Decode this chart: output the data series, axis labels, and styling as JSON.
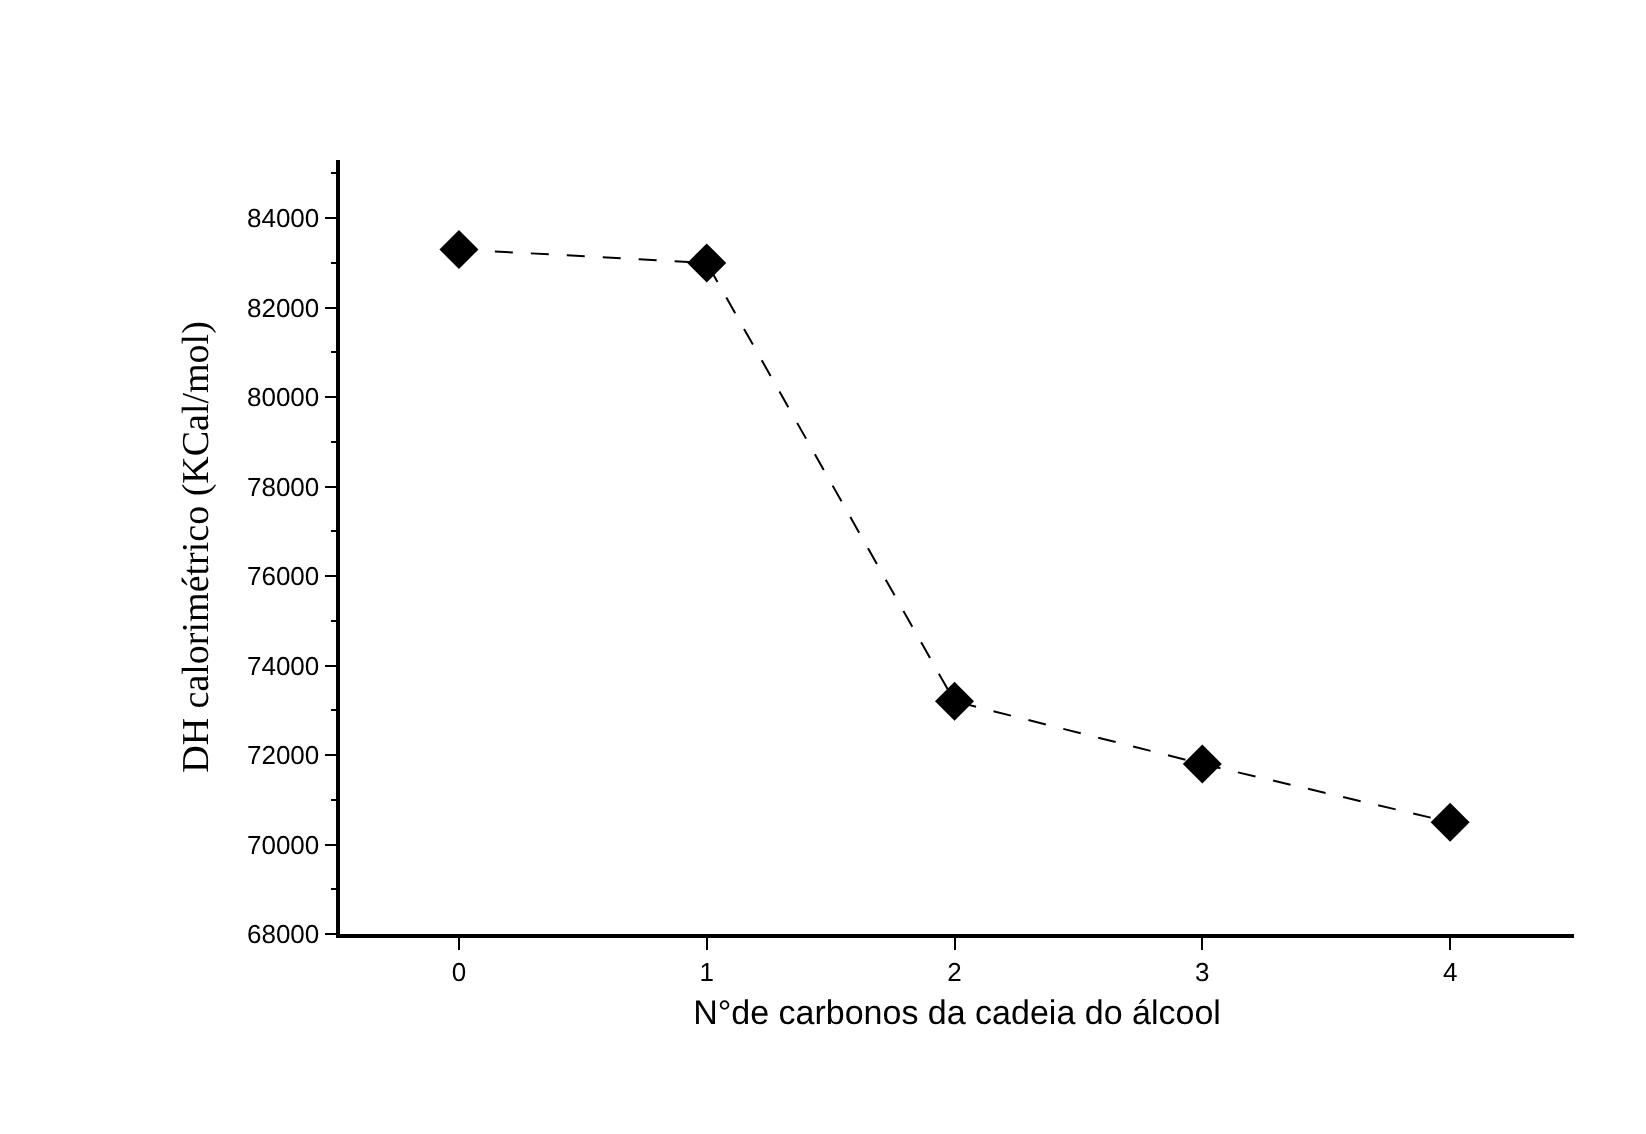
{
  "chart_data": {
    "type": "line",
    "xlabel": "N°de carbonos da cadeia do álcool",
    "ylabel": "DH calorimétrico (KCal/mol)",
    "x": [
      0,
      1,
      2,
      3,
      4
    ],
    "series": [
      {
        "color": "#000000",
        "values": [
          83300,
          83000,
          73200,
          71800,
          70500
        ]
      }
    ],
    "xlim": [
      -0.48,
      4.5
    ],
    "xticks": [
      0,
      1,
      2,
      3,
      4
    ],
    "ylim": [
      68000,
      85300
    ],
    "yticks": [
      68000,
      70000,
      72000,
      74000,
      76000,
      78000,
      80000,
      82000,
      84000
    ],
    "legend": false,
    "marker": "diamond",
    "line_style": "dashed"
  }
}
